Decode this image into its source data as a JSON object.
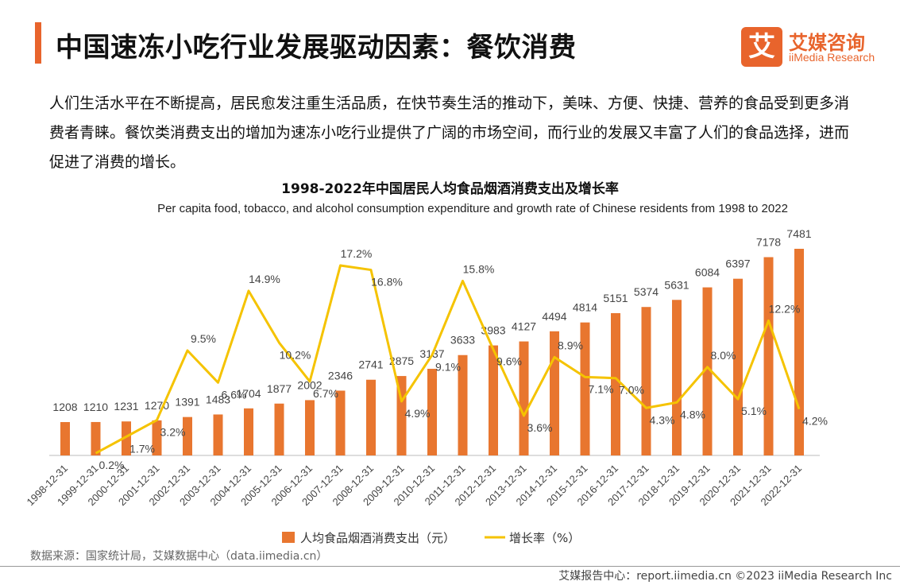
{
  "header": {
    "title": "中国速冻小吃行业发展驱动因素：餐饮消费",
    "logo_mark": "艾",
    "logo_cn": "艾媒咨询",
    "logo_en": "iiMedia Research"
  },
  "intro": "人们生活水平在不断提高，居民愈发注重生活品质，在快节奏生活的推动下，美味、方便、快捷、营养的食品受到更多消费者青睐。餐饮类消费支出的增加为速冻小吃行业提供了广阔的市场空间，而行业的发展又丰富了人们的食品选择，进而促进了消费的增长。",
  "source": "数据来源：国家统计局，艾媒数据中心（data.iimedia.cn）",
  "footer": "艾媒报告中心：report.iimedia.cn  ©2023  iiMedia Research  Inc",
  "colors": {
    "bar": "#e8762f",
    "line": "#f5c300",
    "accent": "#e8642c"
  },
  "chart_data": {
    "type": "bar",
    "title": "1998-2022年中国居民人均食品烟酒消费支出及增长率",
    "subtitle": "Per capita food, tobacco, and alcohol consumption expenditure and growth rate of Chinese residents from 1998 to 2022",
    "categories": [
      "1998-12-31",
      "1999-12-31",
      "2000-12-31",
      "2001-12-31",
      "2002-12-31",
      "2003-12-31",
      "2004-12-31",
      "2005-12-31",
      "2006-12-31",
      "2007-12-31",
      "2008-12-31",
      "2009-12-31",
      "2010-12-31",
      "2011-12-31",
      "2012-12-31",
      "2013-12-31",
      "2014-12-31",
      "2015-12-31",
      "2016-12-31",
      "2017-12-31",
      "2018-12-31",
      "2019-12-31",
      "2020-12-31",
      "2021-12-31",
      "2022-12-31"
    ],
    "series": [
      {
        "name": "人均食品烟酒消费支出（元）",
        "type": "bar",
        "values": [
          1208,
          1210,
          1231,
          1270,
          1391,
          1483,
          1704,
          1877,
          2002,
          2346,
          2741,
          2875,
          3137,
          3633,
          3983,
          4127,
          4494,
          4814,
          5151,
          5374,
          5631,
          6084,
          6397,
          7178,
          7481
        ]
      },
      {
        "name": "增长率（%）",
        "type": "line",
        "values": [
          null,
          0.2,
          1.7,
          3.2,
          9.5,
          6.6,
          14.9,
          10.2,
          6.7,
          17.2,
          16.8,
          4.9,
          9.1,
          15.8,
          9.6,
          3.6,
          8.9,
          7.1,
          7.0,
          4.3,
          4.8,
          8.0,
          5.1,
          12.2,
          4.2
        ],
        "labels": [
          "",
          "0.2%",
          "1.7%",
          "3.2%",
          "9.5%",
          "6.6%",
          "14.9%",
          "10.2%",
          "6.7%",
          "17.2%",
          "16.8%",
          "4.9%",
          "9.1%",
          "15.8%",
          "9.6%",
          "3.6%",
          "8.9%",
          "7.1%",
          "7.0%",
          "4.3%",
          "4.8%",
          "8.0%",
          "5.1%",
          "12.2%",
          "4.2%"
        ]
      }
    ],
    "legend": [
      "人均食品烟酒消费支出（元）",
      "增长率（%）"
    ],
    "legend_position": "bottom",
    "grid": false
  }
}
